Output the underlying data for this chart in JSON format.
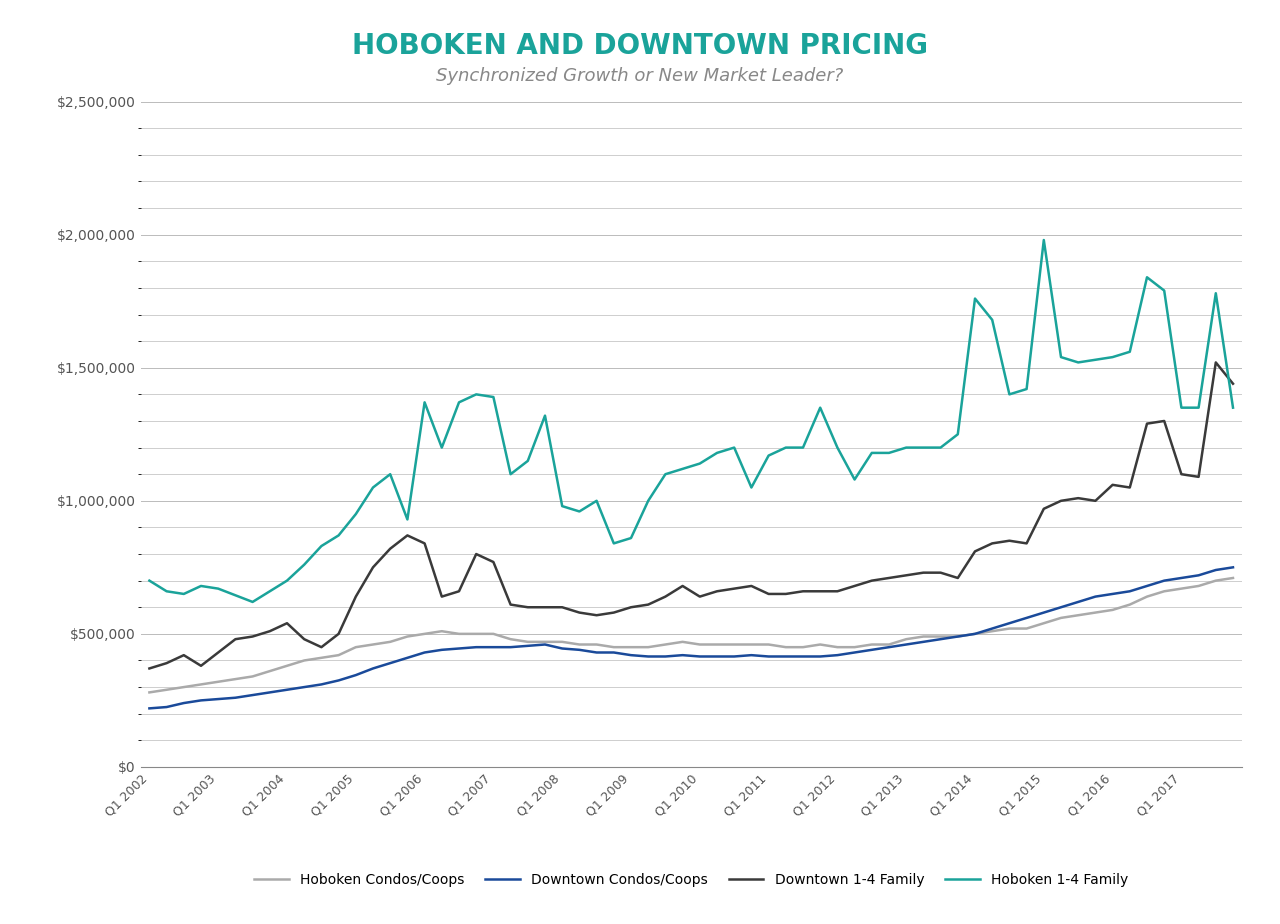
{
  "title": "HOBOKEN AND DOWNTOWN PRICING",
  "subtitle": "Synchronized Growth or New Market Leader?",
  "title_color": "#1aa39a",
  "subtitle_color": "#888888",
  "background_color": "#ffffff",
  "ylim": [
    0,
    2500000
  ],
  "yticks": [
    0,
    500000,
    1000000,
    1500000,
    2000000,
    2500000
  ],
  "xtick_labels": [
    "Q1 2002",
    "Q1 2003",
    "Q1 2004",
    "Q1 2005",
    "Q1 2006",
    "Q1 2007",
    "Q1 2008",
    "Q1 2009",
    "Q1 2010",
    "Q1 2011",
    "Q1 2012",
    "Q1 2013",
    "Q1 2014",
    "Q1 2015",
    "Q1 2016",
    "Q1 2017"
  ],
  "hoboken_family": [
    700000,
    660000,
    650000,
    680000,
    670000,
    645000,
    620000,
    660000,
    700000,
    760000,
    830000,
    870000,
    950000,
    1050000,
    1100000,
    930000,
    1370000,
    1200000,
    1370000,
    1400000,
    1390000,
    1100000,
    1150000,
    1320000,
    980000,
    960000,
    1000000,
    840000,
    860000,
    1000000,
    1100000,
    1120000,
    1140000,
    1180000,
    1200000,
    1050000,
    1170000,
    1200000,
    1200000,
    1350000,
    1200000,
    1080000,
    1180000,
    1180000,
    1200000,
    1200000,
    1200000,
    1250000,
    1760000,
    1680000,
    1400000,
    1420000,
    1980000,
    1540000,
    1520000,
    1530000,
    1540000,
    1560000,
    1840000,
    1790000,
    1350000,
    1350000,
    1780000,
    1350000
  ],
  "downtown_family": [
    370000,
    390000,
    420000,
    380000,
    430000,
    480000,
    490000,
    510000,
    540000,
    480000,
    450000,
    500000,
    640000,
    750000,
    820000,
    870000,
    840000,
    640000,
    660000,
    800000,
    770000,
    610000,
    600000,
    600000,
    600000,
    580000,
    570000,
    580000,
    600000,
    610000,
    640000,
    680000,
    640000,
    660000,
    670000,
    680000,
    650000,
    650000,
    660000,
    660000,
    660000,
    680000,
    700000,
    710000,
    720000,
    730000,
    730000,
    710000,
    810000,
    840000,
    850000,
    840000,
    970000,
    1000000,
    1010000,
    1000000,
    1060000,
    1050000,
    1290000,
    1300000,
    1100000,
    1090000,
    1520000,
    1440000
  ],
  "hoboken_condos": [
    280000,
    290000,
    300000,
    310000,
    320000,
    330000,
    340000,
    360000,
    380000,
    400000,
    410000,
    420000,
    450000,
    460000,
    470000,
    490000,
    500000,
    510000,
    500000,
    500000,
    500000,
    480000,
    470000,
    470000,
    470000,
    460000,
    460000,
    450000,
    450000,
    450000,
    460000,
    470000,
    460000,
    460000,
    460000,
    460000,
    460000,
    450000,
    450000,
    460000,
    450000,
    450000,
    460000,
    460000,
    480000,
    490000,
    490000,
    490000,
    500000,
    510000,
    520000,
    520000,
    540000,
    560000,
    570000,
    580000,
    590000,
    610000,
    640000,
    660000,
    670000,
    680000,
    700000,
    710000
  ],
  "downtown_condos": [
    220000,
    225000,
    240000,
    250000,
    255000,
    260000,
    270000,
    280000,
    290000,
    300000,
    310000,
    325000,
    345000,
    370000,
    390000,
    410000,
    430000,
    440000,
    445000,
    450000,
    450000,
    450000,
    455000,
    460000,
    445000,
    440000,
    430000,
    430000,
    420000,
    415000,
    415000,
    420000,
    415000,
    415000,
    415000,
    420000,
    415000,
    415000,
    415000,
    415000,
    420000,
    430000,
    440000,
    450000,
    460000,
    470000,
    480000,
    490000,
    500000,
    520000,
    540000,
    560000,
    580000,
    600000,
    620000,
    640000,
    650000,
    660000,
    680000,
    700000,
    710000,
    720000,
    740000,
    750000
  ],
  "hoboken_family_color": "#1aa39a",
  "downtown_family_color": "#3a3a3a",
  "hoboken_condos_color": "#aaaaaa",
  "downtown_condos_color": "#1a4a9a",
  "line_width": 1.8,
  "grid_color": "#bbbbbb"
}
